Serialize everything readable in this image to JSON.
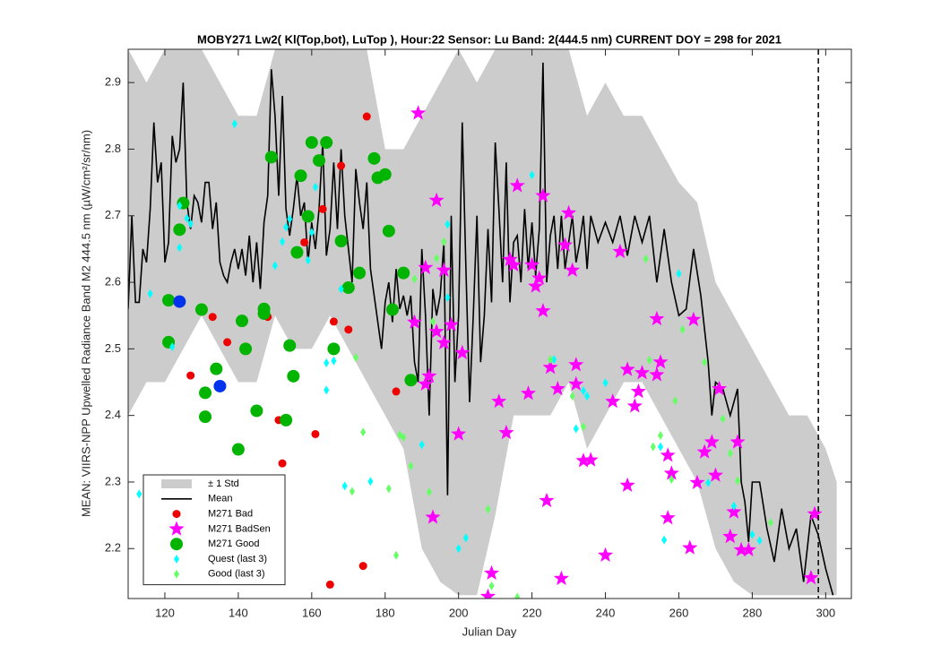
{
  "chart_data": {
    "type": "scatter",
    "title": "MOBY271   Lw2( Kl(Top,bot), LuTop ),   Hour:22 Sensor: Lu Band: 2(444.5 nm)   CURRENT DOY = 298 for 2021",
    "x_label": "Julian Day",
    "y_label": "MEAN: VIIRS-NPP Upwelled Radiance Band M2 444.5 nm (µW/cm²/sr/nm)",
    "xlim": [
      110,
      307
    ],
    "ylim": [
      2.125,
      2.95
    ],
    "xticks": [
      120,
      140,
      160,
      180,
      200,
      220,
      240,
      260,
      280,
      300
    ],
    "yticks": [
      2.2,
      2.3,
      2.4,
      2.5,
      2.6,
      2.7,
      2.8,
      2.9
    ],
    "current_doy": 298,
    "legend": "lower left",
    "series": [
      {
        "name": "± 1 Std",
        "type": "band",
        "color": "#cccccc",
        "x": [
          110,
          115,
          120,
          125,
          130,
          135,
          140,
          145,
          150,
          155,
          160,
          165,
          170,
          175,
          180,
          185,
          190,
          195,
          200,
          205,
          210,
          215,
          220,
          225,
          230,
          235,
          240,
          245,
          250,
          255,
          260,
          265,
          270,
          275,
          280,
          285,
          290,
          295,
          300,
          303
        ],
        "upper": [
          2.95,
          2.9,
          2.95,
          2.95,
          2.95,
          2.9,
          2.85,
          2.85,
          2.95,
          2.95,
          2.95,
          2.95,
          2.95,
          2.95,
          2.8,
          2.8,
          2.85,
          2.9,
          2.95,
          2.9,
          2.95,
          2.95,
          2.95,
          2.95,
          2.95,
          2.85,
          2.9,
          2.85,
          2.85,
          2.8,
          2.75,
          2.72,
          2.6,
          2.55,
          2.5,
          2.45,
          2.4,
          2.4,
          2.35,
          2.3
        ],
        "lower": [
          2.4,
          2.45,
          2.45,
          2.5,
          2.55,
          2.5,
          2.45,
          2.45,
          2.55,
          2.5,
          2.5,
          2.55,
          2.5,
          2.45,
          2.4,
          2.35,
          2.2,
          2.15,
          2.13,
          2.13,
          2.25,
          2.4,
          2.4,
          2.4,
          2.45,
          2.35,
          2.4,
          2.45,
          2.45,
          2.4,
          2.35,
          2.3,
          2.2,
          2.15,
          2.13,
          2.13,
          2.13,
          2.13,
          2.13,
          2.13
        ]
      },
      {
        "name": "Mean",
        "type": "line",
        "color": "#000000",
        "x": [
          110,
          111,
          112,
          113,
          114,
          115,
          116,
          117,
          118,
          119,
          120,
          121,
          122,
          123,
          124,
          125,
          126,
          127,
          128,
          129,
          130,
          131,
          132,
          133,
          134,
          135,
          136,
          137,
          138,
          139,
          140,
          141,
          142,
          143,
          144,
          145,
          146,
          147,
          148,
          149,
          150,
          151,
          152,
          153,
          154,
          155,
          156,
          157,
          158,
          159,
          160,
          161,
          162,
          163,
          164,
          165,
          166,
          167,
          168,
          169,
          170,
          171,
          172,
          173,
          174,
          175,
          176,
          177,
          178,
          179,
          180,
          181,
          182,
          183,
          184,
          185,
          186,
          187,
          188,
          189,
          190,
          191,
          192,
          193,
          194,
          195,
          196,
          197,
          198,
          199,
          200,
          201,
          202,
          203,
          204,
          205,
          206,
          207,
          208,
          209,
          210,
          211,
          212,
          213,
          214,
          215,
          216,
          217,
          218,
          219,
          220,
          221,
          222,
          223,
          224,
          225,
          226,
          227,
          228,
          229,
          230,
          231,
          232,
          233,
          234,
          235,
          236,
          238,
          240,
          242,
          244,
          246,
          248,
          250,
          252,
          254,
          256,
          258,
          260,
          262,
          264,
          266,
          268,
          269,
          270,
          272,
          274,
          276,
          277,
          278,
          279,
          280,
          282,
          284,
          286,
          288,
          290,
          292,
          294,
          296,
          298,
          300,
          302
        ],
        "values": [
          2.56,
          2.7,
          2.57,
          2.57,
          2.65,
          2.63,
          2.71,
          2.84,
          2.75,
          2.78,
          2.63,
          2.66,
          2.82,
          2.78,
          2.8,
          2.9,
          2.72,
          2.68,
          2.73,
          2.72,
          2.69,
          2.75,
          2.75,
          2.68,
          2.72,
          2.63,
          2.61,
          2.6,
          2.63,
          2.65,
          2.62,
          2.65,
          2.61,
          2.67,
          2.6,
          2.66,
          2.59,
          2.69,
          2.73,
          2.92,
          2.85,
          2.73,
          2.88,
          2.71,
          2.67,
          2.71,
          2.76,
          2.7,
          2.72,
          2.63,
          2.69,
          2.65,
          2.71,
          2.81,
          2.64,
          2.68,
          2.78,
          2.68,
          2.8,
          2.7,
          2.65,
          2.6,
          2.77,
          2.72,
          2.68,
          2.75,
          2.62,
          2.58,
          2.54,
          2.5,
          2.57,
          2.6,
          2.54,
          2.62,
          2.56,
          2.58,
          2.55,
          2.58,
          2.48,
          2.45,
          2.65,
          2.55,
          2.4,
          2.59,
          2.55,
          2.58,
          2.66,
          2.28,
          2.7,
          2.45,
          2.55,
          2.84,
          2.62,
          2.42,
          2.55,
          2.7,
          2.48,
          2.55,
          2.68,
          2.57,
          2.81,
          2.71,
          2.6,
          2.78,
          2.57,
          2.66,
          2.67,
          2.6,
          2.71,
          2.62,
          2.69,
          2.61,
          2.68,
          2.93,
          2.6,
          2.67,
          2.7,
          2.62,
          2.7,
          2.62,
          2.66,
          2.7,
          2.63,
          2.66,
          2.7,
          2.62,
          2.7,
          2.66,
          2.69,
          2.66,
          2.7,
          2.64,
          2.7,
          2.66,
          2.7,
          2.6,
          2.68,
          2.6,
          2.55,
          2.56,
          2.65,
          2.58,
          2.48,
          2.4,
          2.45,
          2.44,
          2.4,
          2.44,
          2.3,
          2.27,
          2.21,
          2.3,
          2.3,
          2.23,
          2.18,
          2.26,
          2.2,
          2.23,
          2.15,
          2.25,
          2.22,
          2.17,
          2.13
        ]
      },
      {
        "name": "M271 Bad",
        "type": "scatter",
        "marker": "circle",
        "size": 4.5,
        "color": "#ee0000",
        "x": [
          133,
          127,
          137,
          148,
          151,
          152,
          161,
          158,
          163,
          166,
          168,
          170,
          175,
          183,
          165,
          174
        ],
        "values": [
          2.548,
          2.46,
          2.51,
          2.548,
          2.393,
          2.328,
          2.372,
          2.66,
          2.71,
          2.541,
          2.775,
          2.529,
          2.849,
          2.436,
          2.146,
          2.174
        ]
      },
      {
        "name": "M271 BadSen",
        "type": "scatter",
        "marker": "star",
        "size": 9,
        "color": "#ff00ff",
        "x": [
          189,
          194,
          191,
          196,
          188,
          191,
          192,
          194,
          196,
          198,
          201,
          200,
          193,
          209,
          208,
          211,
          213,
          214,
          215,
          216,
          220,
          221,
          222,
          223,
          223,
          219,
          225,
          227,
          224,
          228,
          230,
          229,
          231,
          232,
          232,
          234,
          236,
          242,
          244,
          246,
          246,
          248,
          249,
          250,
          240,
          254,
          254,
          255,
          257,
          257,
          258,
          263,
          264,
          265,
          267,
          269,
          271,
          270,
          274,
          275,
          276,
          277,
          279,
          297,
          296
        ],
        "values": [
          2.854,
          2.723,
          2.622,
          2.618,
          2.54,
          2.447,
          2.459,
          2.526,
          2.509,
          2.536,
          2.494,
          2.372,
          2.247,
          2.163,
          2.128,
          2.421,
          2.374,
          2.634,
          2.626,
          2.745,
          2.626,
          2.594,
          2.606,
          2.73,
          2.557,
          2.433,
          2.472,
          2.44,
          2.272,
          2.155,
          2.704,
          2.656,
          2.618,
          2.447,
          2.476,
          2.332,
          2.333,
          2.421,
          2.646,
          2.469,
          2.295,
          2.414,
          2.436,
          2.464,
          2.19,
          2.545,
          2.461,
          2.48,
          2.34,
          2.246,
          2.313,
          2.201,
          2.544,
          2.299,
          2.345,
          2.36,
          2.44,
          2.31,
          2.218,
          2.255,
          2.36,
          2.198,
          2.198,
          2.252,
          2.156
        ]
      },
      {
        "name": "M271 Good",
        "type": "scatter",
        "marker": "circle",
        "size": 7,
        "color": "#00b400",
        "x": [
          121,
          121,
          124,
          125,
          130,
          131,
          131,
          134,
          140,
          141,
          142,
          145,
          147,
          147,
          149,
          153,
          154,
          155,
          156,
          157,
          159,
          160,
          162,
          164,
          166,
          168,
          170,
          173,
          177,
          178,
          180,
          181,
          182,
          185,
          187
        ],
        "values": [
          2.573,
          2.51,
          2.679,
          2.719,
          2.559,
          2.434,
          2.398,
          2.47,
          2.349,
          2.542,
          2.5,
          2.407,
          2.553,
          2.56,
          2.788,
          2.393,
          2.505,
          2.459,
          2.645,
          2.76,
          2.699,
          2.81,
          2.783,
          2.81,
          2.5,
          2.662,
          2.592,
          2.614,
          2.786,
          2.757,
          2.762,
          2.677,
          2.559,
          2.614,
          2.453
        ]
      },
      {
        "type": "scatter",
        "marker": "circle",
        "size": 7,
        "color": "#0033ee",
        "x": [
          124,
          135
        ],
        "values": [
          2.571,
          2.444
        ]
      },
      {
        "name": "Quest (last 3)",
        "type": "scatter",
        "marker": "diamond",
        "size": 5,
        "color": "#00ffff",
        "x": [
          113,
          116,
          122,
          124,
          124,
          126,
          127,
          139,
          150,
          152,
          153,
          154,
          159,
          160,
          161,
          164,
          164,
          166,
          168,
          169,
          176,
          190,
          197,
          197,
          200,
          202,
          220,
          226,
          232,
          234,
          235,
          240,
          255,
          256,
          260,
          268,
          275,
          280,
          282
        ],
        "values": [
          2.282,
          2.583,
          2.503,
          2.652,
          2.715,
          2.696,
          2.688,
          2.838,
          2.625,
          2.661,
          2.683,
          2.695,
          2.633,
          2.675,
          2.743,
          2.479,
          2.438,
          2.482,
          2.59,
          2.294,
          2.301,
          2.356,
          2.577,
          2.687,
          2.2,
          2.216,
          2.761,
          2.484,
          2.38,
          2.437,
          2.429,
          2.449,
          2.353,
          2.213,
          2.613,
          2.299,
          2.264,
          2.221,
          2.212
        ]
      },
      {
        "name": "Good (last 3)",
        "type": "scatter",
        "marker": "diamond",
        "size": 5,
        "color": "#66ff66",
        "x": [
          188,
          194,
          196,
          193,
          192,
          187,
          185,
          184,
          181,
          183,
          174,
          171,
          172,
          208,
          209,
          216,
          225,
          231,
          234,
          251,
          252,
          253,
          255,
          258,
          259,
          261,
          267,
          272,
          274,
          276,
          285
        ],
        "values": [
          2.605,
          2.636,
          2.661,
          2.541,
          2.285,
          2.324,
          2.367,
          2.371,
          2.29,
          2.19,
          2.375,
          2.286,
          2.487,
          2.259,
          2.144,
          2.127,
          2.484,
          2.429,
          2.383,
          2.635,
          2.483,
          2.353,
          2.37,
          2.304,
          2.422,
          2.529,
          2.48,
          2.395,
          2.343,
          2.302,
          2.239
        ]
      }
    ]
  }
}
